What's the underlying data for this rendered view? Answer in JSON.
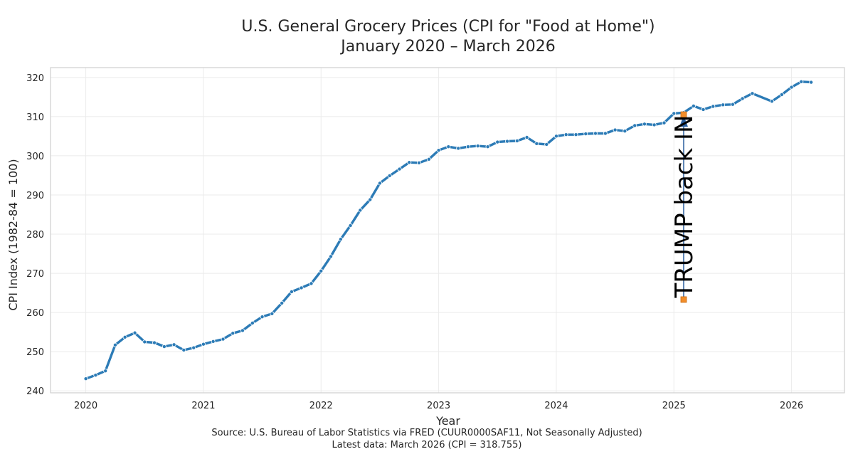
{
  "chart_data": {
    "type": "line",
    "title": "U.S. General Grocery Prices (CPI for \"Food at Home\")",
    "subtitle": "January 2020 – March 2026",
    "xlabel": "Year",
    "ylabel": "CPI Index (1982-84 = 100)",
    "source_line1": "Source: U.S. Bureau of Labor Statistics via FRED (CUUR0000SAF11, Not Seasonally Adjusted)",
    "source_line2": "Latest data: March 2026 (CPI = 318.755)",
    "xlim": [
      2019.7,
      2026.45
    ],
    "ylim": [
      239.5,
      322.5
    ],
    "x_ticks": [
      2020,
      2021,
      2022,
      2023,
      2024,
      2025,
      2026
    ],
    "y_ticks": [
      240,
      250,
      260,
      270,
      280,
      290,
      300,
      310,
      320
    ],
    "grid": true,
    "line_color": "#2c7bb6",
    "series": [
      {
        "x": [
          2020.0,
          2020.083,
          2020.167,
          2020.25,
          2020.333,
          2020.417,
          2020.5,
          2020.583,
          2020.667,
          2020.75,
          2020.833,
          2020.917,
          2021.0,
          2021.083,
          2021.167,
          2021.25,
          2021.333,
          2021.417,
          2021.5,
          2021.583,
          2021.667,
          2021.75,
          2021.833,
          2021.917,
          2022.0,
          2022.083,
          2022.167,
          2022.25,
          2022.333,
          2022.417,
          2022.5,
          2022.583,
          2022.667,
          2022.75,
          2022.833,
          2022.917,
          2023.0,
          2023.083,
          2023.167,
          2023.25,
          2023.333,
          2023.417,
          2023.5,
          2023.583,
          2023.667,
          2023.75,
          2023.833,
          2023.917,
          2024.0,
          2024.083,
          2024.167,
          2024.25,
          2024.333,
          2024.417,
          2024.5,
          2024.583,
          2024.667,
          2024.75,
          2024.833,
          2024.917,
          2025.0,
          2025.083,
          2025.167,
          2025.25,
          2025.333,
          2025.417,
          2025.5,
          2025.583,
          2025.667,
          2025.75,
          2025.833,
          2025.917,
          2026.0,
          2026.083,
          2026.167
        ],
        "y": [
          243.1,
          244.0,
          245.1,
          251.7,
          253.7,
          254.8,
          252.5,
          252.3,
          251.3,
          251.8,
          250.4,
          251.0,
          251.9,
          252.6,
          253.2,
          254.7,
          255.4,
          257.3,
          258.9,
          259.7,
          262.4,
          265.3,
          266.3,
          267.4,
          270.6,
          274.3,
          278.7,
          282.2,
          286.1,
          288.8,
          293.0,
          294.9,
          296.6,
          298.3,
          298.2,
          299.1,
          301.4,
          302.3,
          301.9,
          302.3,
          302.5,
          302.3,
          303.5,
          303.7,
          303.8,
          304.7,
          303.1,
          302.9,
          305.0,
          305.4,
          305.4,
          305.6,
          305.7,
          305.7,
          306.6,
          306.3,
          307.7,
          308.1,
          307.9,
          308.4,
          310.8,
          311.0,
          312.7,
          311.8,
          312.6,
          313.0,
          313.1,
          314.6,
          315.9,
          null,
          313.9,
          315.6,
          317.5,
          318.9,
          318.755
        ]
      }
    ],
    "annotation": {
      "text": "TRUMP back IN",
      "x": 2025.083,
      "y_top": 310.5,
      "y_bottom": 263.3,
      "arrow_color": "#2c5f9e",
      "marker_color": "#f28e2b"
    }
  }
}
